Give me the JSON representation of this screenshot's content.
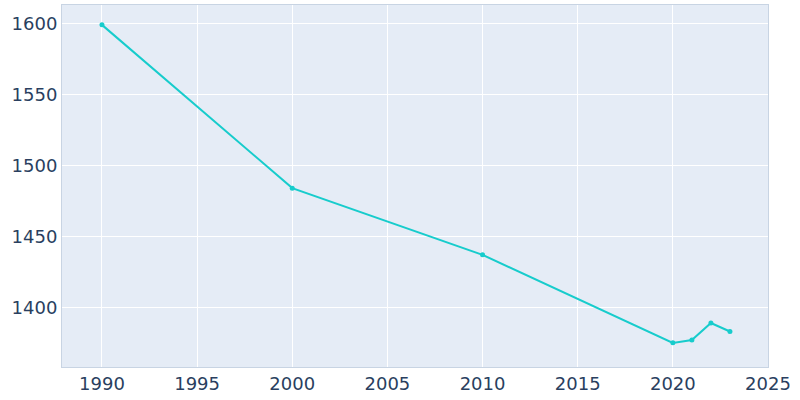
{
  "chart_data": {
    "type": "line",
    "x": [
      1990,
      2000,
      2010,
      2020,
      2021,
      2022,
      2023
    ],
    "values": [
      1599,
      1484,
      1437,
      1375,
      1377,
      1389,
      1383
    ],
    "color": "#17cccc",
    "marker": "circle",
    "xlim": [
      1987.9,
      2025
    ],
    "xticks": [
      1990,
      1995,
      2000,
      2005,
      2010,
      2015,
      2020,
      2025
    ],
    "ylim": [
      1358,
      1613
    ],
    "yticks": [
      1400,
      1450,
      1500,
      1550,
      1600
    ],
    "grid": true
  }
}
